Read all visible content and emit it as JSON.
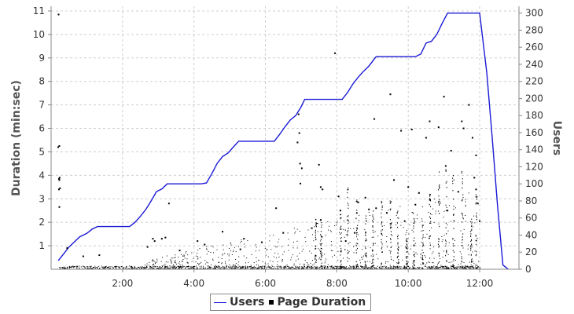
{
  "chart_data": {
    "type": "line",
    "title": "",
    "x_axis": {
      "unit": "minutes",
      "range": [
        0,
        13.1
      ],
      "tick_values": [
        2,
        4,
        6,
        8,
        10,
        12
      ],
      "tick_labels": [
        "2:00",
        "4:00",
        "6:00",
        "8:00",
        "10:00",
        "12:00"
      ]
    },
    "y_axis_left": {
      "label": "Duration (min:sec)",
      "range": [
        0,
        11.2
      ],
      "tick_values": [
        1,
        2,
        3,
        4,
        5,
        6,
        7,
        8,
        9,
        10,
        11
      ],
      "tick_labels": [
        "1",
        "2",
        "3",
        "4",
        "5",
        "6",
        "7",
        "8",
        "9",
        "10",
        "11"
      ]
    },
    "y_axis_right": {
      "label": "Users",
      "range": [
        0,
        308
      ],
      "tick_values": [
        0,
        20,
        40,
        60,
        80,
        100,
        120,
        140,
        160,
        180,
        200,
        220,
        240,
        260,
        280,
        300
      ],
      "tick_labels": [
        "0",
        "20",
        "40",
        "60",
        "80",
        "100",
        "120",
        "140",
        "160",
        "180",
        "200",
        "220",
        "240",
        "260",
        "280",
        "300"
      ]
    },
    "grid": true,
    "legend_position": "bottom",
    "series": [
      {
        "name": "Users",
        "kind": "line",
        "axis": "right",
        "color": "#1a1ad6",
        "points": [
          [
            0.2,
            10
          ],
          [
            0.35,
            18
          ],
          [
            0.5,
            26
          ],
          [
            0.65,
            32
          ],
          [
            0.8,
            38
          ],
          [
            1.0,
            42
          ],
          [
            1.15,
            47
          ],
          [
            1.3,
            50
          ],
          [
            1.5,
            50
          ],
          [
            2.0,
            50
          ],
          [
            2.2,
            50
          ],
          [
            2.35,
            55
          ],
          [
            2.5,
            62
          ],
          [
            2.65,
            70
          ],
          [
            2.8,
            80
          ],
          [
            2.95,
            91
          ],
          [
            3.1,
            94
          ],
          [
            3.25,
            100
          ],
          [
            3.5,
            100
          ],
          [
            4.0,
            100
          ],
          [
            4.2,
            100
          ],
          [
            4.35,
            101
          ],
          [
            4.5,
            112
          ],
          [
            4.65,
            124
          ],
          [
            4.8,
            132
          ],
          [
            4.95,
            136
          ],
          [
            5.1,
            143
          ],
          [
            5.25,
            150
          ],
          [
            5.5,
            150
          ],
          [
            6.0,
            150
          ],
          [
            6.25,
            150
          ],
          [
            6.4,
            158
          ],
          [
            6.55,
            167
          ],
          [
            6.7,
            175
          ],
          [
            6.85,
            180
          ],
          [
            7.0,
            190
          ],
          [
            7.1,
            199
          ],
          [
            7.5,
            199
          ],
          [
            8.0,
            199
          ],
          [
            8.15,
            199
          ],
          [
            8.3,
            207
          ],
          [
            8.45,
            217
          ],
          [
            8.6,
            225
          ],
          [
            8.75,
            232
          ],
          [
            8.9,
            238
          ],
          [
            9.1,
            249
          ],
          [
            9.5,
            249
          ],
          [
            10.0,
            249
          ],
          [
            10.2,
            249
          ],
          [
            10.35,
            252
          ],
          [
            10.5,
            265
          ],
          [
            10.65,
            267
          ],
          [
            10.8,
            275
          ],
          [
            10.95,
            288
          ],
          [
            11.1,
            300
          ],
          [
            11.5,
            300
          ],
          [
            12.0,
            300
          ],
          [
            12.2,
            230
          ],
          [
            12.35,
            155
          ],
          [
            12.5,
            75
          ],
          [
            12.65,
            5
          ],
          [
            12.8,
            0
          ]
        ]
      },
      {
        "name": "Page Duration",
        "kind": "scatter",
        "axis": "left",
        "color": "#000000",
        "points": [
          [
            0.21,
            10.85
          ],
          [
            0.23,
            5.25
          ],
          [
            0.2,
            5.2
          ],
          [
            0.24,
            3.9
          ],
          [
            0.22,
            3.85
          ],
          [
            0.23,
            3.8
          ],
          [
            0.25,
            3.45
          ],
          [
            0.22,
            3.4
          ],
          [
            0.23,
            2.65
          ],
          [
            0.45,
            0.9
          ],
          [
            0.9,
            0.55
          ],
          [
            1.35,
            0.6
          ],
          [
            2.7,
            0.95
          ],
          [
            2.85,
            1.3
          ],
          [
            2.9,
            1.2
          ],
          [
            3.1,
            1.3
          ],
          [
            3.2,
            1.35
          ],
          [
            3.3,
            2.8
          ],
          [
            3.6,
            0.8
          ],
          [
            4.1,
            1.2
          ],
          [
            4.3,
            1.05
          ],
          [
            4.8,
            1.6
          ],
          [
            5.3,
            0.85
          ],
          [
            5.4,
            1.3
          ],
          [
            5.9,
            1.15
          ],
          [
            6.3,
            2.6
          ],
          [
            6.5,
            1.55
          ],
          [
            6.9,
            5.4
          ],
          [
            6.93,
            6.6
          ],
          [
            6.95,
            5.8
          ],
          [
            6.97,
            4.5
          ],
          [
            6.98,
            3.65
          ],
          [
            7.02,
            4.3
          ],
          [
            7.3,
            1.75
          ],
          [
            7.5,
            4.45
          ],
          [
            7.55,
            3.5
          ],
          [
            7.6,
            3.4
          ],
          [
            7.55,
            2.1
          ],
          [
            7.95,
            9.2
          ],
          [
            8.05,
            3.1
          ],
          [
            8.1,
            2.5
          ],
          [
            8.25,
            1.2
          ],
          [
            8.5,
            1.55
          ],
          [
            8.6,
            2.85
          ],
          [
            8.8,
            3.05
          ],
          [
            8.9,
            2.55
          ],
          [
            9.05,
            6.4
          ],
          [
            9.1,
            2.6
          ],
          [
            9.4,
            2.4
          ],
          [
            9.5,
            7.45
          ],
          [
            9.6,
            3.8
          ],
          [
            9.8,
            5.9
          ],
          [
            9.9,
            2.05
          ],
          [
            10.0,
            3.5
          ],
          [
            10.1,
            5.95
          ],
          [
            10.2,
            2.75
          ],
          [
            10.3,
            3.25
          ],
          [
            10.5,
            5.6
          ],
          [
            10.6,
            6.3
          ],
          [
            10.85,
            6.05
          ],
          [
            11.0,
            7.35
          ],
          [
            11.05,
            4.4
          ],
          [
            11.1,
            2.5
          ],
          [
            11.2,
            5.05
          ],
          [
            11.4,
            3.3
          ],
          [
            11.5,
            6.3
          ],
          [
            11.55,
            6.0
          ],
          [
            11.7,
            7.0
          ],
          [
            11.8,
            5.6
          ],
          [
            11.9,
            4.85
          ],
          [
            11.85,
            3.9
          ],
          [
            11.9,
            3.4
          ],
          [
            11.95,
            2.8
          ],
          [
            12.0,
            2.05
          ]
        ]
      }
    ],
    "legend": [
      {
        "label": "Users",
        "marker": "line"
      },
      {
        "label": "Page Duration",
        "marker": "square"
      }
    ]
  }
}
